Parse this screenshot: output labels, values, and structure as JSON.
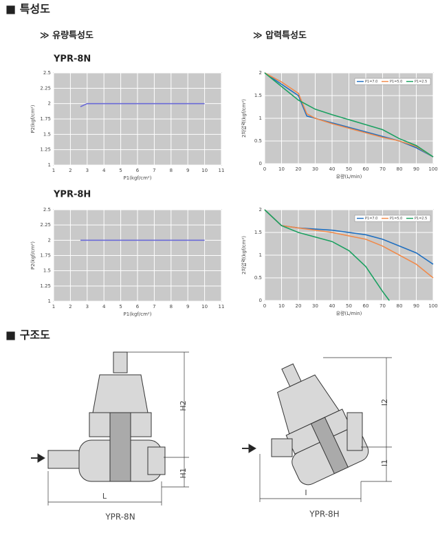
{
  "header": {
    "title": "■ 특성도"
  },
  "flow_heading": "≫ 유량특성도",
  "pressure_heading": "≫ 압력특성도",
  "models": [
    "YPR-8N",
    "YPR-8H"
  ],
  "chart_data": [
    {
      "type": "line",
      "xlabel": "P1(kgf/cm²)",
      "ylabel": "P2(kgf/cm²)",
      "xlim": [
        1,
        11
      ],
      "xticks": [
        1,
        2,
        3,
        4,
        5,
        6,
        7,
        8,
        9,
        10,
        11
      ],
      "ylim": [
        1,
        2.5
      ],
      "yticks": [
        1,
        1.25,
        1.5,
        1.75,
        2,
        2.25,
        2.5
      ],
      "grid": true,
      "series": [
        {
          "color": "#6a6ad8",
          "x": [
            2.6,
            3,
            10
          ],
          "values": [
            1.95,
            2,
            2
          ]
        }
      ]
    },
    {
      "type": "line",
      "xlabel": "유량(L/min)",
      "ylabel": "2차압력(kgf/cm²)",
      "xlim": [
        0,
        100
      ],
      "xticks": [
        0,
        10,
        20,
        30,
        40,
        50,
        60,
        70,
        80,
        90,
        100
      ],
      "ylim": [
        0,
        2
      ],
      "yticks": [
        0,
        0.5,
        1,
        1.5,
        2
      ],
      "grid": true,
      "legend": "upper right",
      "series": [
        {
          "name": "P1=7.0",
          "color": "#1f6fc0",
          "x": [
            0,
            10,
            20,
            25,
            30,
            40,
            50,
            60,
            70,
            80,
            90,
            100
          ],
          "values": [
            2,
            1.75,
            1.5,
            1.05,
            1,
            0.9,
            0.8,
            0.7,
            0.6,
            0.5,
            0.35,
            0.15
          ]
        },
        {
          "name": "P1=5.0",
          "color": "#f08a4b",
          "x": [
            0,
            10,
            20,
            25,
            30,
            40,
            50,
            60,
            70,
            80,
            90,
            100
          ],
          "values": [
            2,
            1.8,
            1.55,
            1.1,
            1,
            0.88,
            0.78,
            0.68,
            0.58,
            0.5,
            0.38,
            0.15
          ]
        },
        {
          "name": "P1=2.5",
          "color": "#1aa060",
          "x": [
            0,
            10,
            20,
            25,
            30,
            40,
            50,
            60,
            70,
            80,
            90,
            100
          ],
          "values": [
            2,
            1.7,
            1.4,
            1.3,
            1.2,
            1.08,
            0.97,
            0.86,
            0.75,
            0.55,
            0.4,
            0.15
          ]
        }
      ]
    },
    {
      "type": "line",
      "xlabel": "P1(kgf/cm²)",
      "ylabel": "P2(kgf/cm²)",
      "xlim": [
        1,
        11
      ],
      "xticks": [
        1,
        2,
        3,
        4,
        5,
        6,
        7,
        8,
        9,
        10,
        11
      ],
      "ylim": [
        1,
        2.5
      ],
      "yticks": [
        1,
        1.25,
        1.5,
        1.75,
        2,
        2.25,
        2.5
      ],
      "grid": true,
      "series": [
        {
          "color": "#6a6ad8",
          "x": [
            2.6,
            10
          ],
          "values": [
            2,
            2
          ]
        }
      ]
    },
    {
      "type": "line",
      "xlabel": "유량(L/min)",
      "ylabel": "2차압력(kgf/cm²)",
      "xlim": [
        0,
        100
      ],
      "xticks": [
        0,
        10,
        20,
        30,
        40,
        50,
        60,
        70,
        80,
        90,
        100
      ],
      "ylim": [
        0,
        2
      ],
      "yticks": [
        0,
        0.5,
        1,
        1.5,
        2
      ],
      "grid": true,
      "legend": "upper right",
      "series": [
        {
          "name": "P1=7.0",
          "color": "#1f6fc0",
          "x": [
            0,
            10,
            20,
            40,
            60,
            70,
            80,
            90,
            100
          ],
          "values": [
            2,
            1.65,
            1.6,
            1.55,
            1.45,
            1.35,
            1.2,
            1.05,
            0.8
          ]
        },
        {
          "name": "P1=5.0",
          "color": "#f08a4b",
          "x": [
            0,
            10,
            20,
            40,
            60,
            70,
            80,
            90,
            100
          ],
          "values": [
            2,
            1.65,
            1.6,
            1.5,
            1.35,
            1.2,
            1,
            0.8,
            0.5
          ]
        },
        {
          "name": "P1=2.5",
          "color": "#1aa060",
          "x": [
            0,
            10,
            20,
            30,
            40,
            50,
            60,
            70,
            74
          ],
          "values": [
            2,
            1.65,
            1.5,
            1.4,
            1.3,
            1.1,
            0.75,
            0.2,
            0
          ]
        }
      ]
    }
  ],
  "structure": {
    "title": "■ 구조도",
    "left_labels": [
      "H2",
      "H1",
      "L"
    ],
    "right_labels": [
      "I2",
      "I1",
      "I"
    ],
    "captions": [
      "YPR-8N",
      "YPR-8H"
    ]
  }
}
